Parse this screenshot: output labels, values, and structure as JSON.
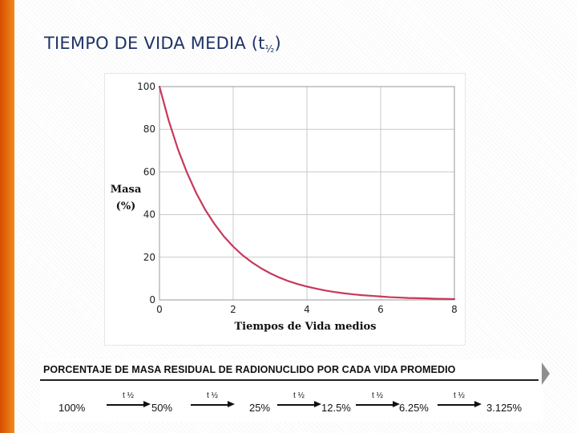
{
  "slide": {
    "title_main": "TIEMPO DE VIDA MEDIA (t",
    "title_sub": "½",
    "title_end": ")"
  },
  "chart_data": {
    "type": "line",
    "xlabel": "Tiempos de Vida medios",
    "ylabel_line1": "Masa",
    "ylabel_line2": "(%)",
    "xlim": [
      0,
      8
    ],
    "ylim": [
      0,
      100
    ],
    "xticks": [
      "0",
      "2",
      "4",
      "6",
      "8"
    ],
    "yticks": [
      "0",
      "20",
      "40",
      "60",
      "80",
      "100"
    ],
    "grid": true,
    "line_color": "#c8385a",
    "series": [
      {
        "x": [
          0,
          0.25,
          0.5,
          0.75,
          1,
          1.25,
          1.5,
          1.75,
          2,
          2.25,
          2.5,
          2.75,
          3,
          3.25,
          3.5,
          3.75,
          4,
          4.25,
          4.5,
          4.75,
          5,
          5.25,
          5.5,
          5.75,
          6,
          6.25,
          6.5,
          6.75,
          7,
          7.25,
          7.5,
          7.75,
          8
        ],
        "y": [
          100,
          84.1,
          70.7,
          59.5,
          50,
          42.0,
          35.4,
          29.7,
          25,
          21.0,
          17.7,
          14.9,
          12.5,
          10.5,
          8.8,
          7.4,
          6.25,
          5.3,
          4.4,
          3.7,
          3.1,
          2.6,
          2.2,
          1.9,
          1.6,
          1.3,
          1.1,
          0.9,
          0.8,
          0.7,
          0.55,
          0.46,
          0.39
        ]
      }
    ]
  },
  "table": {
    "heading": "PORCENTAJE DE MASA RESIDUAL DE RADIONUCLIDO POR CADA VIDA PROMEDIO",
    "values": [
      "100%",
      "50%",
      "25%",
      "12.5%",
      "6.25%",
      "3.125%"
    ],
    "arrow_labels": [
      "t ½",
      "t ½",
      "t ½",
      "t ½",
      "t ½"
    ]
  },
  "colors": {
    "title": "#1f3366",
    "accent_bar": "#f08a1c",
    "grid": "#c8c8c8"
  }
}
